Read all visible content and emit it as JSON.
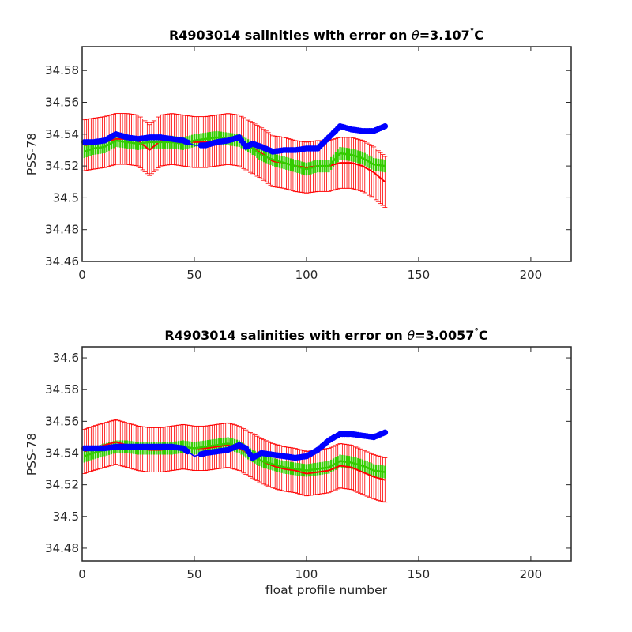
{
  "chart_data": [
    {
      "type": "line",
      "title_prefix": "R4903014 salinities with error on ",
      "title_theta": "θ",
      "title_value": "=3.107",
      "title_degree": "°",
      "title_unit": "C",
      "xlabel": "",
      "ylabel": "PSS-78",
      "xlim": [
        0,
        218
      ],
      "ylim": [
        34.46,
        34.595
      ],
      "xticks": [
        0,
        50,
        100,
        150,
        200
      ],
      "xtick_labels": [
        "0",
        "50",
        "100",
        "150",
        "200"
      ],
      "yticks": [
        34.46,
        34.48,
        34.5,
        34.52,
        34.54,
        34.56,
        34.58
      ],
      "ytick_labels": [
        "34.46",
        "34.48",
        "34.5",
        "34.52",
        "34.54",
        "34.56",
        "34.58"
      ],
      "grid": false,
      "series": [
        {
          "role": "float",
          "color": "#0000ff",
          "x": [
            1,
            5,
            10,
            15,
            20,
            25,
            30,
            35,
            40,
            45,
            50,
            55,
            60,
            65,
            70,
            73,
            76,
            80,
            85,
            90,
            95,
            100,
            105,
            110,
            115,
            120,
            125,
            130,
            135
          ],
          "y": [
            34.535,
            34.535,
            34.536,
            34.54,
            34.538,
            34.537,
            34.538,
            34.538,
            34.537,
            34.536,
            34.533,
            34.533,
            34.535,
            34.536,
            34.538,
            34.532,
            34.534,
            34.532,
            34.529,
            34.53,
            34.53,
            34.531,
            34.531,
            34.538,
            34.545,
            34.543,
            34.542,
            34.542,
            34.545
          ]
        },
        {
          "role": "mapped",
          "color": "#ff0000",
          "x": [
            1,
            5,
            10,
            15,
            20,
            25,
            30,
            35,
            40,
            45,
            50,
            55,
            60,
            65,
            70,
            75,
            80,
            85,
            90,
            95,
            100,
            105,
            110,
            115,
            120,
            125,
            130,
            135
          ],
          "y": [
            34.533,
            34.534,
            34.535,
            34.537,
            34.537,
            34.536,
            34.53,
            34.536,
            34.537,
            34.536,
            34.535,
            34.535,
            34.536,
            34.537,
            34.536,
            34.532,
            34.528,
            34.523,
            34.522,
            34.52,
            34.519,
            34.52,
            34.52,
            34.522,
            34.522,
            34.52,
            34.516,
            34.51
          ]
        },
        {
          "role": "calibrated",
          "color": "#33cc00",
          "x": [
            1,
            5,
            10,
            15,
            20,
            25,
            30,
            35,
            40,
            45,
            50,
            55,
            60,
            65,
            70,
            75,
            80,
            85,
            90,
            95,
            100,
            105,
            110,
            115,
            120,
            125,
            130,
            135
          ],
          "y": [
            34.529,
            34.531,
            34.532,
            34.536,
            34.535,
            34.534,
            34.535,
            34.535,
            34.535,
            34.534,
            34.536,
            34.537,
            34.538,
            34.537,
            34.536,
            34.532,
            34.527,
            34.524,
            34.522,
            34.52,
            34.518,
            34.52,
            34.52,
            34.528,
            34.527,
            34.525,
            34.521,
            34.52
          ]
        },
        {
          "role": "mapped_error",
          "color": "#ff0000",
          "values": 0.016
        }
      ]
    },
    {
      "type": "line",
      "title_prefix": "R4903014 salinities with error on ",
      "title_theta": "θ",
      "title_value": "=3.0057",
      "title_degree": "°",
      "title_unit": "C",
      "xlabel": "float profile number",
      "ylabel": "PSS-78",
      "xlim": [
        0,
        218
      ],
      "ylim": [
        34.472,
        34.607
      ],
      "xticks": [
        0,
        50,
        100,
        150,
        200
      ],
      "xtick_labels": [
        "0",
        "50",
        "100",
        "150",
        "200"
      ],
      "yticks": [
        34.48,
        34.5,
        34.52,
        34.54,
        34.56,
        34.58,
        34.6
      ],
      "ytick_labels": [
        "34.48",
        "34.5",
        "34.52",
        "34.54",
        "34.56",
        "34.58",
        "34.6"
      ],
      "grid": false,
      "series": [
        {
          "role": "float",
          "color": "#0000ff",
          "x": [
            1,
            5,
            10,
            15,
            20,
            25,
            30,
            35,
            40,
            45,
            50,
            55,
            60,
            65,
            70,
            73,
            76,
            80,
            85,
            90,
            95,
            100,
            105,
            110,
            115,
            120,
            125,
            130,
            135
          ],
          "y": [
            34.543,
            34.543,
            34.543,
            34.544,
            34.544,
            34.544,
            34.544,
            34.544,
            34.544,
            34.543,
            34.538,
            34.54,
            34.541,
            34.542,
            34.545,
            34.543,
            34.537,
            34.54,
            34.539,
            34.538,
            34.537,
            34.538,
            34.542,
            34.548,
            34.552,
            34.552,
            34.551,
            34.55,
            34.553
          ]
        },
        {
          "role": "mapped",
          "color": "#ff0000",
          "x": [
            1,
            5,
            10,
            15,
            20,
            25,
            30,
            35,
            40,
            45,
            50,
            55,
            60,
            65,
            70,
            75,
            80,
            85,
            90,
            95,
            100,
            105,
            110,
            115,
            120,
            125,
            130,
            135
          ],
          "y": [
            34.541,
            34.543,
            34.545,
            34.547,
            34.545,
            34.543,
            34.542,
            34.542,
            34.543,
            34.544,
            34.543,
            34.543,
            34.544,
            34.545,
            34.543,
            34.539,
            34.535,
            34.532,
            34.53,
            34.529,
            34.527,
            34.528,
            34.529,
            34.532,
            34.531,
            34.528,
            34.525,
            34.523
          ]
        },
        {
          "role": "calibrated",
          "color": "#33cc00",
          "x": [
            1,
            5,
            10,
            15,
            20,
            25,
            30,
            35,
            40,
            45,
            50,
            55,
            60,
            65,
            70,
            75,
            80,
            85,
            90,
            95,
            100,
            105,
            110,
            115,
            120,
            125,
            130,
            135
          ],
          "y": [
            34.538,
            34.54,
            34.542,
            34.544,
            34.544,
            34.543,
            34.543,
            34.543,
            34.543,
            34.544,
            34.543,
            34.544,
            34.545,
            34.546,
            34.544,
            34.539,
            34.535,
            34.533,
            34.531,
            34.53,
            34.529,
            34.53,
            34.531,
            34.535,
            34.534,
            34.532,
            34.529,
            34.528
          ]
        },
        {
          "role": "mapped_error",
          "color": "#ff0000",
          "values": 0.014
        }
      ]
    }
  ]
}
